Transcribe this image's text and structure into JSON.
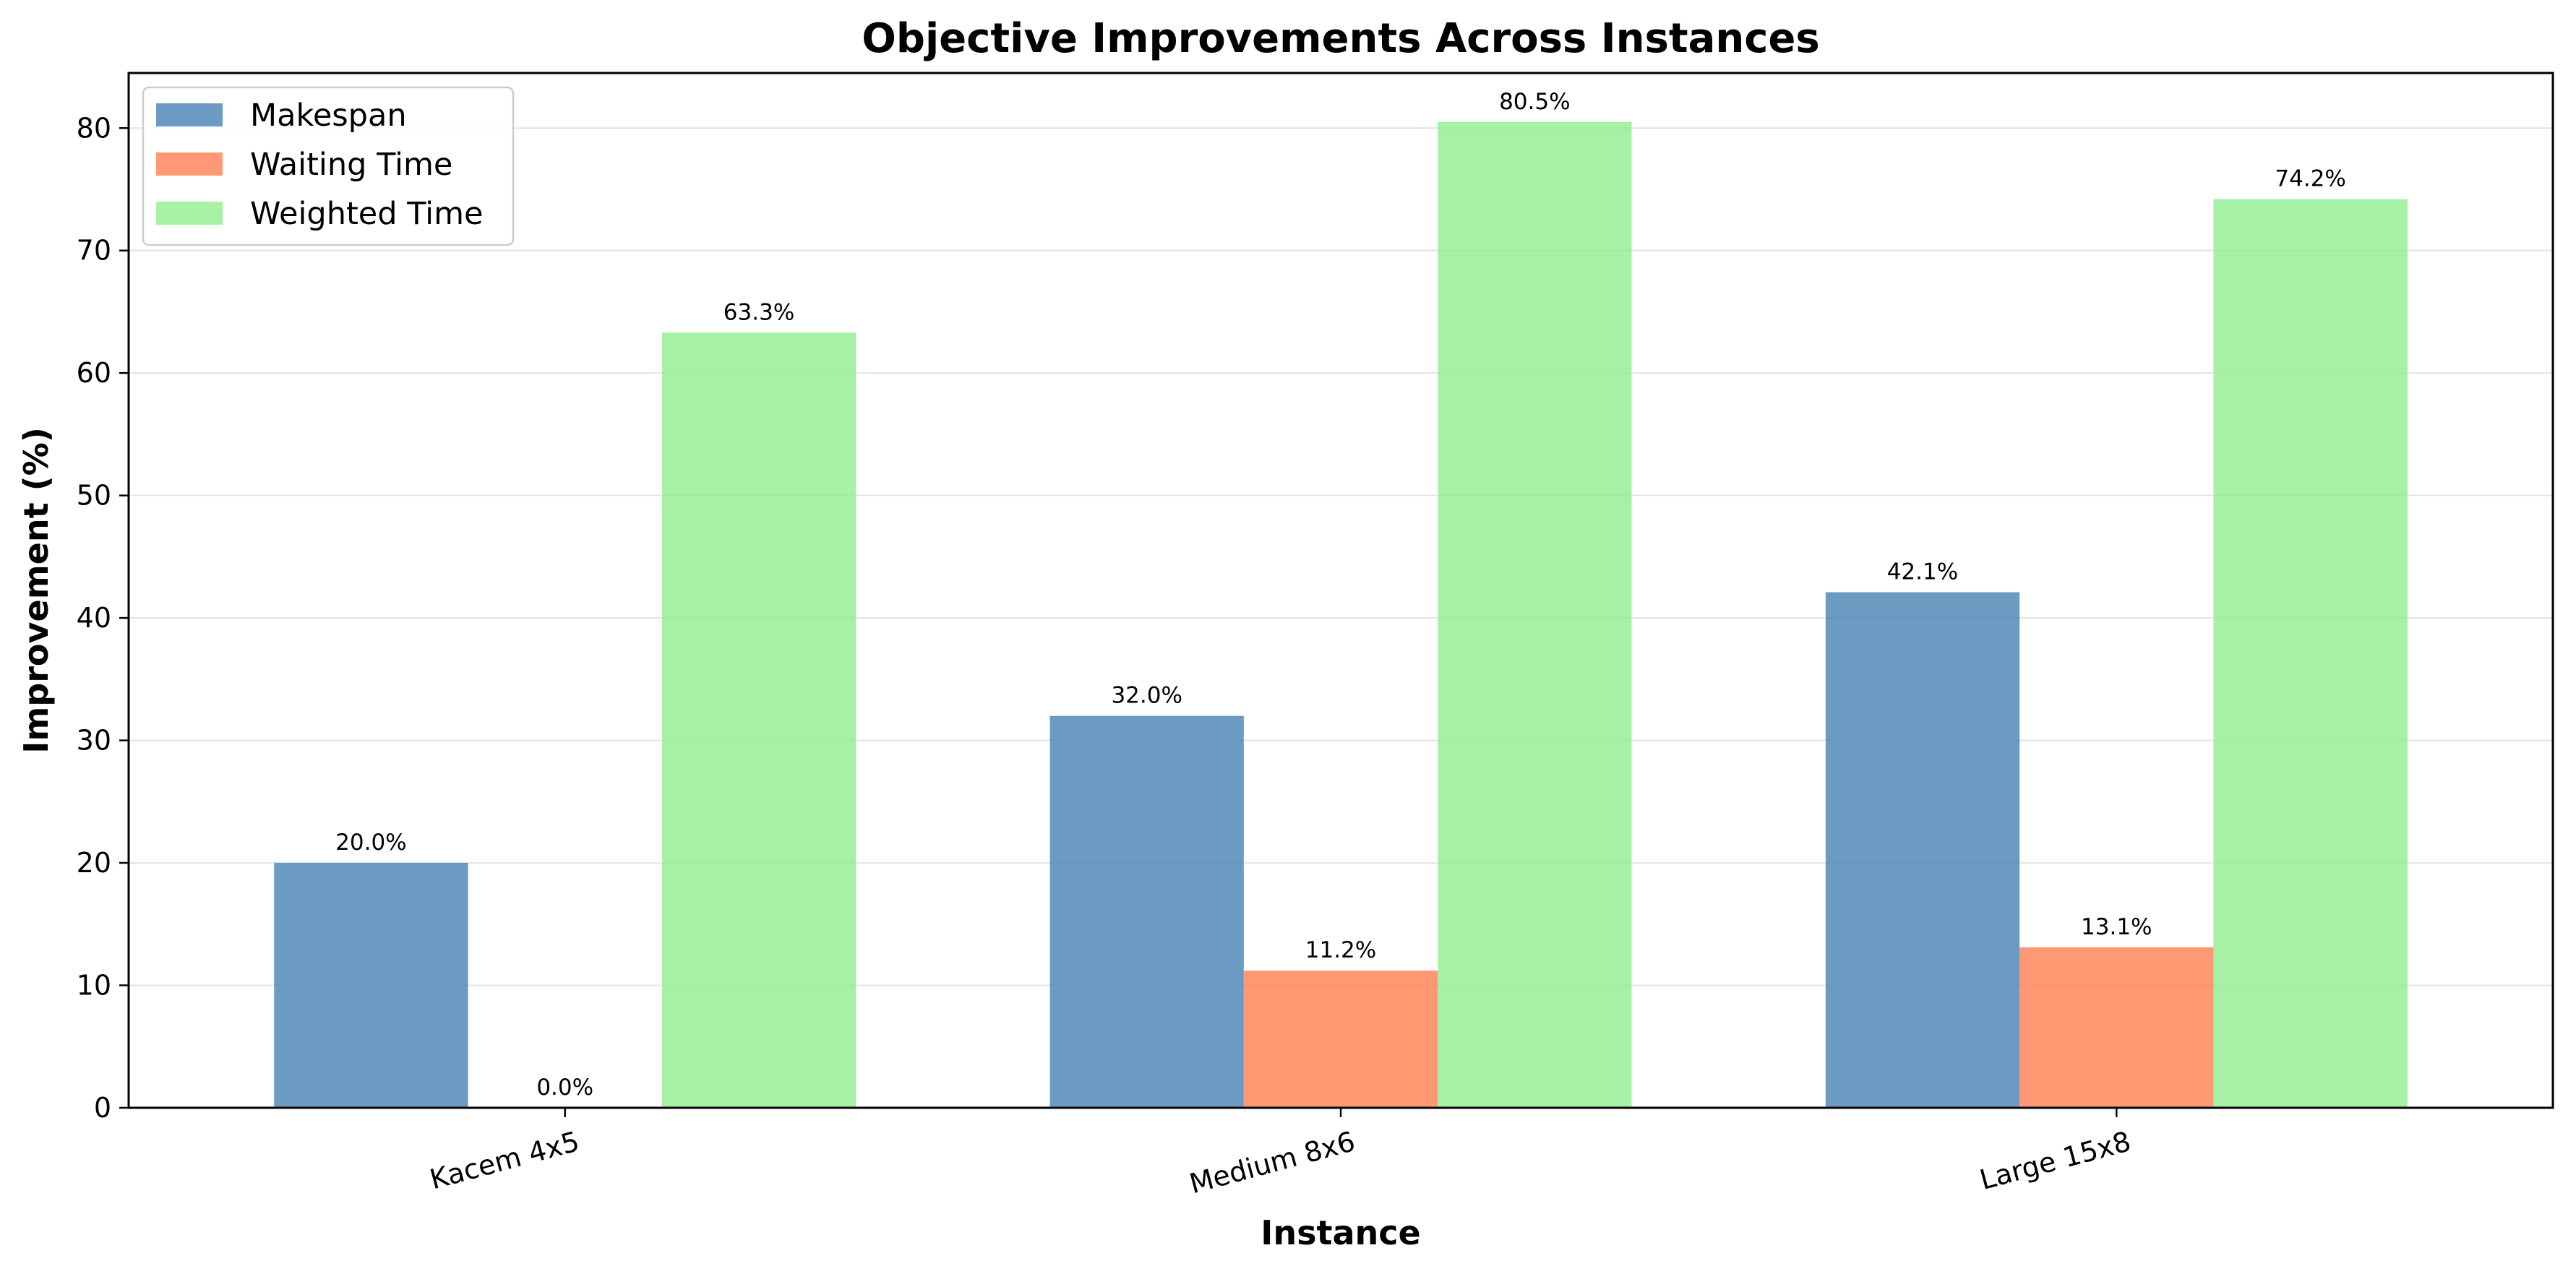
{
  "chart_data": {
    "type": "bar",
    "title": "Objective Improvements Across Instances",
    "xlabel": "Instance",
    "ylabel": "Improvement (%)",
    "categories": [
      "Kacem 4x5",
      "Medium 8x6",
      "Large 15x8"
    ],
    "series": [
      {
        "name": "Makespan",
        "values": [
          20.0,
          32.0,
          42.1
        ],
        "color": "#4682b4",
        "labels": [
          "20.0%",
          "32.0%",
          "42.1%"
        ]
      },
      {
        "name": "Waiting Time",
        "values": [
          0.0,
          11.2,
          13.1
        ],
        "color": "#ff7f50",
        "labels": [
          "0.0%",
          "11.2%",
          "13.1%"
        ]
      },
      {
        "name": "Weighted Time",
        "values": [
          63.3,
          80.5,
          74.2
        ],
        "color": "#90ee90",
        "labels": [
          "63.3%",
          "80.5%",
          "74.2%"
        ]
      }
    ],
    "ylim": [
      0,
      84.5
    ],
    "yticks": [
      0,
      10,
      20,
      30,
      40,
      50,
      60,
      70,
      80
    ],
    "grid": "horizontal",
    "legend": "top-left",
    "bar_opacity": 0.8
  }
}
